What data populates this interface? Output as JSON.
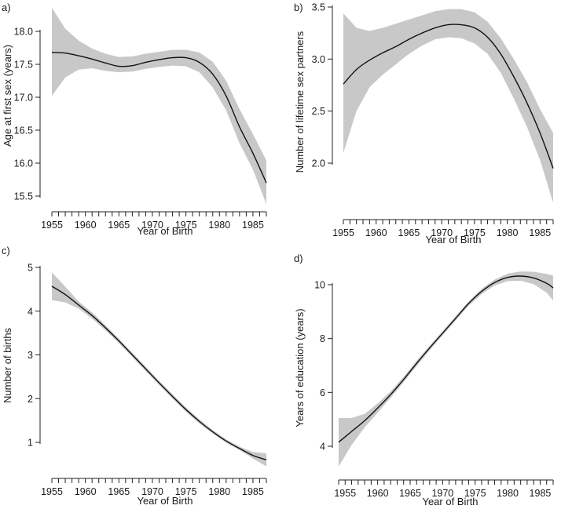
{
  "chart_data": [
    {
      "type": "line",
      "panel_label": "a)",
      "xlabel": "Year of Birth",
      "ylabel": "Age at first sex (years)",
      "xlim": [
        1955,
        1987
      ],
      "ylim": [
        15.5,
        18.0
      ],
      "x_ticks": [
        "1955",
        "1960",
        "1965",
        "1970",
        "1975",
        "1980",
        "1985"
      ],
      "y_ticks": [
        "15.5",
        "16.0",
        "16.5",
        "17.0",
        "17.5",
        "18.0"
      ],
      "minor_x_ticks": "yearly",
      "series": [
        {
          "name": "fit",
          "x": [
            1955,
            1957,
            1959,
            1961,
            1963,
            1965,
            1967,
            1969,
            1971,
            1973,
            1975,
            1977,
            1979,
            1981,
            1983,
            1985,
            1987
          ],
          "y": [
            17.68,
            17.67,
            17.63,
            17.58,
            17.52,
            17.47,
            17.48,
            17.53,
            17.57,
            17.6,
            17.6,
            17.53,
            17.35,
            17.02,
            16.55,
            16.15,
            15.7
          ],
          "lower": [
            17.02,
            17.3,
            17.42,
            17.44,
            17.4,
            17.38,
            17.39,
            17.43,
            17.46,
            17.48,
            17.47,
            17.38,
            17.15,
            16.8,
            16.3,
            15.9,
            15.38
          ],
          "upper": [
            18.36,
            18.04,
            17.86,
            17.74,
            17.66,
            17.61,
            17.62,
            17.66,
            17.69,
            17.72,
            17.72,
            17.68,
            17.54,
            17.25,
            16.82,
            16.44,
            16.04
          ]
        }
      ]
    },
    {
      "type": "line",
      "panel_label": "b)",
      "xlabel": "Year of Birth",
      "ylabel": "Number of lifetime sex partners",
      "xlim": [
        1955,
        1987
      ],
      "ylim": [
        2.0,
        3.5
      ],
      "x_ticks": [
        "1955",
        "1960",
        "1965",
        "1970",
        "1975",
        "1980",
        "1985"
      ],
      "y_ticks": [
        "2.0",
        "2.5",
        "3.0",
        "3.5"
      ],
      "minor_x_ticks": "yearly",
      "series": [
        {
          "name": "fit",
          "x": [
            1955,
            1957,
            1959,
            1961,
            1963,
            1965,
            1967,
            1969,
            1971,
            1973,
            1975,
            1977,
            1979,
            1981,
            1983,
            1985,
            1987
          ],
          "y": [
            2.76,
            2.9,
            2.99,
            3.06,
            3.12,
            3.19,
            3.25,
            3.3,
            3.33,
            3.33,
            3.3,
            3.21,
            3.05,
            2.83,
            2.58,
            2.29,
            1.95
          ],
          "lower": [
            2.1,
            2.5,
            2.73,
            2.85,
            2.95,
            3.05,
            3.13,
            3.19,
            3.21,
            3.2,
            3.15,
            3.05,
            2.87,
            2.62,
            2.35,
            2.03,
            1.62
          ],
          "upper": [
            3.44,
            3.3,
            3.27,
            3.3,
            3.34,
            3.38,
            3.42,
            3.46,
            3.48,
            3.48,
            3.45,
            3.36,
            3.2,
            3.0,
            2.78,
            2.52,
            2.29
          ]
        }
      ]
    },
    {
      "type": "line",
      "panel_label": "c)",
      "xlabel": "Year of Birth",
      "ylabel": "Number of births",
      "xlim": [
        1955,
        1987
      ],
      "ylim": [
        1,
        5
      ],
      "x_ticks": [
        "1955",
        "1960",
        "1965",
        "1970",
        "1975",
        "1980",
        "1985"
      ],
      "y_ticks": [
        "1",
        "2",
        "3",
        "4",
        "5"
      ],
      "minor_x_ticks": "yearly",
      "series": [
        {
          "name": "fit",
          "x": [
            1955,
            1957,
            1959,
            1961,
            1963,
            1965,
            1967,
            1969,
            1971,
            1973,
            1975,
            1977,
            1979,
            1981,
            1983,
            1985,
            1987
          ],
          "y": [
            4.57,
            4.38,
            4.14,
            3.9,
            3.62,
            3.32,
            3.0,
            2.68,
            2.36,
            2.05,
            1.75,
            1.48,
            1.24,
            1.03,
            0.86,
            0.7,
            0.6
          ],
          "lower": [
            4.25,
            4.2,
            4.06,
            3.83,
            3.56,
            3.27,
            2.95,
            2.63,
            2.31,
            2.0,
            1.7,
            1.43,
            1.2,
            0.99,
            0.82,
            0.63,
            0.45
          ],
          "upper": [
            4.89,
            4.56,
            4.22,
            3.97,
            3.68,
            3.37,
            3.05,
            2.73,
            2.41,
            2.1,
            1.8,
            1.53,
            1.28,
            1.07,
            0.9,
            0.78,
            0.75
          ]
        }
      ]
    },
    {
      "type": "line",
      "panel_label": "d)",
      "xlabel": "Year of Birth",
      "ylabel": "Years of education (years)",
      "xlim": [
        1954,
        1987
      ],
      "ylim": [
        4,
        10
      ],
      "x_ticks": [
        "1955",
        "1960",
        "1965",
        "1970",
        "1975",
        "1980",
        "1985"
      ],
      "y_ticks": [
        "4",
        "6",
        "8",
        "10"
      ],
      "minor_x_ticks": "yearly",
      "series": [
        {
          "name": "fit",
          "x": [
            1954,
            1956,
            1958,
            1960,
            1962,
            1964,
            1966,
            1968,
            1970,
            1972,
            1974,
            1976,
            1978,
            1980,
            1982,
            1984,
            1986,
            1987
          ],
          "y": [
            4.15,
            4.55,
            4.95,
            5.42,
            5.92,
            6.48,
            7.08,
            7.65,
            8.2,
            8.75,
            9.3,
            9.75,
            10.08,
            10.27,
            10.32,
            10.25,
            10.05,
            9.88
          ],
          "lower": [
            3.25,
            4.05,
            4.7,
            5.25,
            5.8,
            6.38,
            6.98,
            7.56,
            8.12,
            8.67,
            9.22,
            9.65,
            9.97,
            10.13,
            10.15,
            10.02,
            9.7,
            9.42
          ],
          "upper": [
            5.05,
            5.05,
            5.2,
            5.59,
            6.04,
            6.58,
            7.18,
            7.74,
            8.28,
            8.83,
            9.38,
            9.85,
            10.19,
            10.41,
            10.49,
            10.48,
            10.4,
            10.34
          ]
        }
      ]
    }
  ]
}
